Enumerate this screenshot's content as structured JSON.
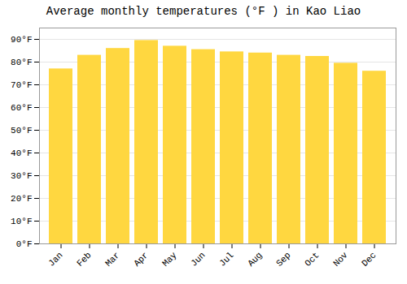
{
  "chart_data": {
    "type": "bar",
    "title": "Average monthly temperatures (°F ) in Kao Liao",
    "categories": [
      "Jan",
      "Feb",
      "Mar",
      "Apr",
      "May",
      "Jun",
      "Jul",
      "Aug",
      "Sep",
      "Oct",
      "Nov",
      "Dec"
    ],
    "values": [
      77,
      83,
      86,
      89.5,
      87,
      85.5,
      84.5,
      84,
      83,
      82.5,
      79.5,
      76
    ],
    "color": "#FFD740",
    "ylim": [
      0,
      95
    ],
    "yticks": [
      {
        "value": 0,
        "label": "0°F"
      },
      {
        "value": 10,
        "label": "10°F"
      },
      {
        "value": 20,
        "label": "20°F"
      },
      {
        "value": 30,
        "label": "30°F"
      },
      {
        "value": 40,
        "label": "40°F"
      },
      {
        "value": 50,
        "label": "50°F"
      },
      {
        "value": 60,
        "label": "60°F"
      },
      {
        "value": 70,
        "label": "70°F"
      },
      {
        "value": 80,
        "label": "80°F"
      },
      {
        "value": 90,
        "label": "90°F"
      }
    ],
    "grid": true
  }
}
